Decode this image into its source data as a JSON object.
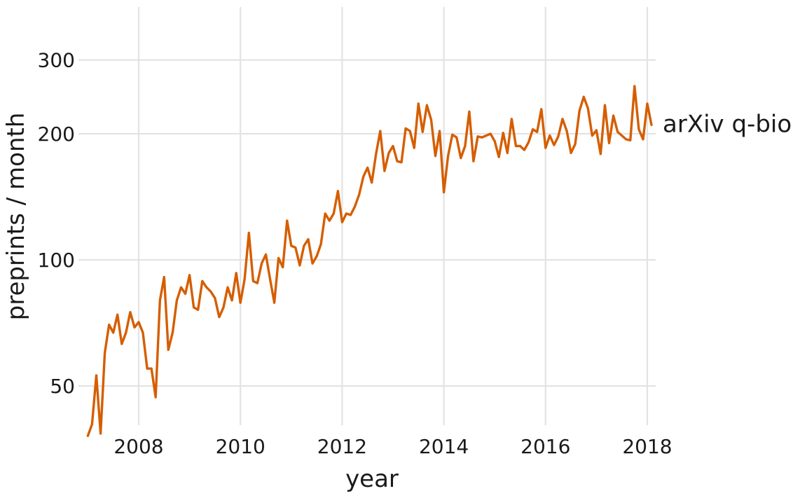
{
  "chart_data": {
    "type": "line",
    "xlabel": "year",
    "ylabel": "preprints / month",
    "y_scale": "log",
    "xlim": [
      2007.0,
      2018.15
    ],
    "ylim": [
      38,
      360
    ],
    "x_ticks": [
      2008,
      2010,
      2012,
      2014,
      2016,
      2018
    ],
    "x_tick_labels": [
      "2008",
      "2010",
      "2012",
      "2014",
      "2016",
      "2018"
    ],
    "y_ticks": [
      50,
      100,
      200,
      300
    ],
    "y_tick_labels": [
      "50",
      "100",
      "200",
      "300"
    ],
    "grid": true,
    "legend": "none",
    "colors": {
      "series": "#d55e00",
      "grid": "#e3e3e3",
      "text": "#1a1a1a"
    },
    "series": [
      {
        "name": "arXiv q-bio",
        "label_position": "end-of-line",
        "x": [
          2007.0,
          2007.083,
          2007.167,
          2007.25,
          2007.333,
          2007.417,
          2007.5,
          2007.583,
          2007.667,
          2007.75,
          2007.833,
          2007.917,
          2008.0,
          2008.083,
          2008.167,
          2008.25,
          2008.333,
          2008.417,
          2008.5,
          2008.583,
          2008.667,
          2008.75,
          2008.833,
          2008.917,
          2009.0,
          2009.083,
          2009.167,
          2009.25,
          2009.333,
          2009.417,
          2009.5,
          2009.583,
          2009.667,
          2009.75,
          2009.833,
          2009.917,
          2010.0,
          2010.083,
          2010.167,
          2010.25,
          2010.333,
          2010.417,
          2010.5,
          2010.583,
          2010.667,
          2010.75,
          2010.833,
          2010.917,
          2011.0,
          2011.083,
          2011.167,
          2011.25,
          2011.333,
          2011.417,
          2011.5,
          2011.583,
          2011.667,
          2011.75,
          2011.833,
          2011.917,
          2012.0,
          2012.083,
          2012.167,
          2012.25,
          2012.333,
          2012.417,
          2012.5,
          2012.583,
          2012.667,
          2012.75,
          2012.833,
          2012.917,
          2013.0,
          2013.083,
          2013.167,
          2013.25,
          2013.333,
          2013.417,
          2013.5,
          2013.583,
          2013.667,
          2013.75,
          2013.833,
          2013.917,
          2014.0,
          2014.083,
          2014.167,
          2014.25,
          2014.333,
          2014.417,
          2014.5,
          2014.583,
          2014.667,
          2014.75,
          2014.833,
          2014.917,
          2015.0,
          2015.083,
          2015.167,
          2015.25,
          2015.333,
          2015.417,
          2015.5,
          2015.583,
          2015.667,
          2015.75,
          2015.833,
          2015.917,
          2016.0,
          2016.083,
          2016.167,
          2016.25,
          2016.333,
          2016.417,
          2016.5,
          2016.583,
          2016.667,
          2016.75,
          2016.833,
          2016.917,
          2017.0,
          2017.083,
          2017.167,
          2017.25,
          2017.333,
          2017.417,
          2017.5,
          2017.583,
          2017.667,
          2017.75,
          2017.833,
          2017.917,
          2018.0,
          2018.083
        ],
        "values": [
          38.0,
          40.5,
          53.0,
          38.5,
          60.0,
          70.0,
          67.0,
          74.0,
          63.0,
          67.0,
          75.0,
          69.0,
          71.0,
          67.0,
          55.0,
          55.0,
          47.0,
          80.0,
          91.0,
          61.0,
          67.0,
          80.0,
          86.0,
          83.0,
          92.0,
          77.0,
          76.0,
          89.0,
          86.0,
          84.0,
          81.0,
          73.0,
          77.0,
          86.0,
          80.0,
          93.0,
          79.0,
          90.0,
          116.0,
          89.0,
          88.0,
          98.0,
          103.0,
          90.0,
          79.0,
          101.0,
          96.0,
          124.0,
          108.0,
          107.0,
          97.0,
          108.0,
          112.0,
          98.0,
          102.0,
          109.0,
          129.0,
          124.0,
          129.0,
          146.0,
          123.0,
          129.0,
          128.0,
          134.0,
          143.0,
          158.0,
          166.0,
          153.0,
          179.0,
          203.0,
          163.0,
          180.0,
          187.0,
          172.0,
          171.0,
          206.0,
          203.0,
          185.0,
          236.0,
          202.0,
          234.0,
          216.0,
          177.0,
          203.0,
          145.0,
          177.0,
          199.0,
          196.0,
          175.0,
          187.0,
          226.0,
          172.0,
          197.0,
          196.0,
          198.0,
          200.0,
          192.0,
          176.0,
          201.0,
          180.0,
          217.0,
          187.0,
          187.0,
          183.0,
          191.0,
          205.0,
          202.0,
          229.0,
          185.0,
          198.0,
          188.0,
          197.0,
          217.0,
          203.0,
          180.0,
          189.0,
          227.0,
          245.0,
          230.0,
          198.0,
          204.0,
          179.0,
          234.0,
          190.0,
          221.0,
          202.0,
          198.0,
          194.0,
          193.0,
          260.0,
          205.0,
          194.0,
          236.0,
          210.0
        ]
      }
    ]
  }
}
